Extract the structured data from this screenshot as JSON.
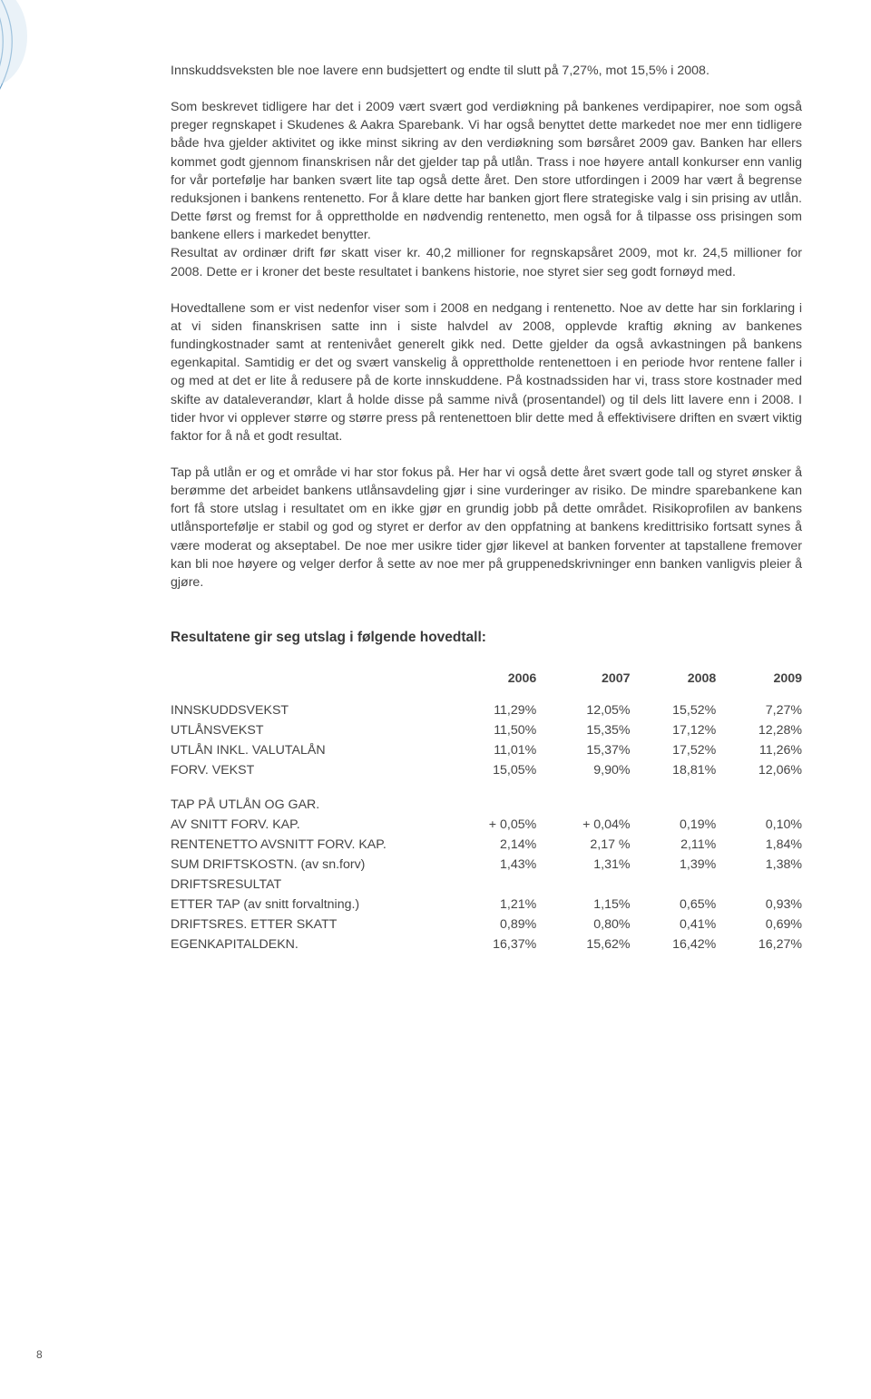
{
  "ornament": {
    "stroke": "#6aa0c9",
    "fill": "#d6e6f2"
  },
  "paragraphs": {
    "p1": "Innskuddsveksten ble noe lavere enn budsjettert og endte til slutt på 7,27%, mot 15,5% i 2008.",
    "p2": "Som beskrevet tidligere har det i 2009 vært svært god verdiøkning på bankenes verdipapirer, noe som også preger regnskapet i Skudenes & Aakra Sparebank. Vi har også benyttet dette markedet noe mer enn tidligere både hva gjelder aktivitet og ikke minst sikring av den verdiøkning som børsåret 2009 gav. Banken har ellers kommet godt gjennom finanskrisen når det gjelder tap på utlån. Trass i noe høyere antall konkurser enn vanlig for vår portefølje har banken svært lite tap også dette året. Den store utfordingen i 2009 har vært å begrense reduksjonen i bankens rentenetto. For å klare dette har banken gjort flere strategiske valg i sin prising av utlån. Dette først og fremst for å opprettholde en nødvendig rentenetto, men også for å tilpasse oss prisingen som bankene ellers i markedet benytter.",
    "p3": "Resultat av ordinær drift før skatt viser kr. 40,2 millioner for regnskapsåret 2009, mot kr. 24,5 millioner for 2008. Dette er i kroner det beste resultatet i bankens historie, noe styret sier seg godt fornøyd med.",
    "p4": "Hovedtallene som er vist nedenfor viser som i 2008 en nedgang i rentenetto. Noe av dette har sin forklaring i at vi siden finanskrisen satte inn i siste halvdel av 2008, opplevde kraftig økning av bankenes fundingkostnader samt at rentenivået generelt gikk ned. Dette gjelder da også avkastningen på bankens egenkapital. Samtidig er det og svært vanskelig å opprettholde rentenettoen i en periode hvor rentene faller i og med at det er lite å redusere på de korte innskuddene. På kostnadssiden har vi, trass store kostnader med skifte av dataleverandør, klart å holde disse på samme nivå (prosentandel) og til dels litt lavere enn i 2008. I tider hvor vi opplever større og større press på rentenettoen blir dette med å effektivisere driften en svært viktig faktor for å nå et godt resultat.",
    "p5": "Tap på utlån er og et område vi har stor fokus på. Her har vi også dette året svært gode tall og styret ønsker å berømme det arbeidet bankens utlånsavdeling gjør i sine vurderinger av risiko. De mindre sparebankene kan fort få store utslag i resultatet om en ikke gjør en grundig jobb på dette området. Risikoprofilen av bankens utlånsportefølje er stabil og god og styret er derfor av den oppfatning at  bankens kredittrisiko fortsatt synes å være moderat og akseptabel. De noe mer usikre tider gjør likevel at banken forventer at tapstallene fremover kan bli noe høyere og velger derfor å sette av noe mer på gruppenedskrivninger enn banken vanligvis pleier å gjøre."
  },
  "tableHeading": "Resultatene gir seg utslag i følgende hovedtall:",
  "table": {
    "columns": [
      "2006",
      "2007",
      "2008",
      "2009"
    ],
    "rows1": [
      {
        "label": "INNSKUDDSVEKST",
        "vals": [
          "11,29%",
          "12,05%",
          "15,52%",
          "7,27%"
        ]
      },
      {
        "label": "UTLÅNSVEKST",
        "vals": [
          "11,50%",
          "15,35%",
          "17,12%",
          "12,28%"
        ]
      },
      {
        "label": "UTLÅN INKL. VALUTALÅN",
        "vals": [
          "11,01%",
          "15,37%",
          "17,52%",
          "11,26%"
        ]
      },
      {
        "label": "FORV. VEKST",
        "vals": [
          "15,05%",
          "9,90%",
          "18,81%",
          "12,06%"
        ]
      }
    ],
    "rowGroupLabel": "TAP PÅ UTLÅN OG GAR.",
    "rows2": [
      {
        "label": "AV SNITT FORV. KAP.",
        "vals": [
          "+ 0,05%",
          "+ 0,04%",
          "0,19%",
          "0,10%"
        ]
      },
      {
        "label": "RENTENETTO AVSNITT FORV. KAP.",
        "vals": [
          "2,14%",
          "2,17 %",
          "2,11%",
          "1,84%"
        ]
      },
      {
        "label": "SUM DRIFTSKOSTN. (av sn.forv)",
        "vals": [
          "1,43%",
          "1,31%",
          "1,39%",
          "1,38%"
        ]
      }
    ],
    "rowGroupLabel2": "DRIFTSRESULTAT",
    "rows3": [
      {
        "label": "ETTER TAP (av snitt forvaltning.)",
        "vals": [
          "1,21%",
          "1,15%",
          "0,65%",
          "0,93%"
        ]
      },
      {
        "label": "DRIFTSRES. ETTER SKATT",
        "vals": [
          "0,89%",
          "0,80%",
          "0,41%",
          "0,69%"
        ]
      },
      {
        "label": "EGENKAPITALDEKN.",
        "vals": [
          "16,37%",
          "15,62%",
          "16,42%",
          "16,27%"
        ]
      }
    ]
  },
  "pageNumber": "8"
}
